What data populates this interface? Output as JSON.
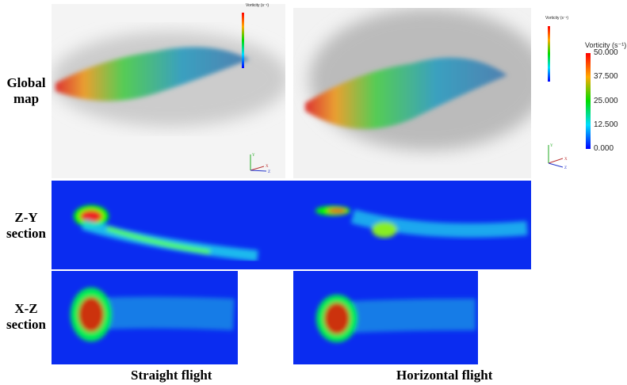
{
  "row_labels": {
    "global": [
      "Global",
      "map"
    ],
    "zy": [
      "Z-Y",
      "section"
    ],
    "xz": [
      "X-Z",
      "section"
    ]
  },
  "captions": {
    "left": "Straight flight",
    "right": "Horizontal flight"
  },
  "legend": {
    "title": "Vorticity (s⁻¹)",
    "ticks": [
      "50.000",
      "37.500",
      "25.000",
      "12.500",
      "0.000"
    ],
    "colors": [
      "#ff0000",
      "#ffa000",
      "#00e000",
      "#00e0ff",
      "#0000ff"
    ]
  },
  "axes": {
    "x": "X",
    "y": "Y",
    "z": "Z"
  },
  "colors": {
    "section_bg": "#0a2cf0"
  }
}
